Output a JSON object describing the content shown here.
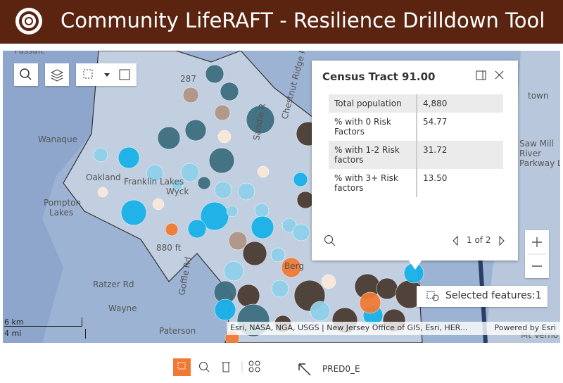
{
  "header": {
    "title": "Community LifeRAFT - Resilience Drilldown Tool"
  },
  "map": {
    "labels": [
      "Passaic",
      "Wanaque",
      "Oakland",
      "Franklin Lakes",
      "Wyck",
      "Pompton",
      "Lakes",
      "880 ft",
      "Ratzer Rd",
      "Goffle Rd",
      "Wayne",
      "Paterson",
      "Chestnut Ridge Rd",
      "Saddle R",
      "Berg",
      "287",
      "town",
      "Saw Mill",
      "River",
      "Parkway Lake",
      "Mt Verno"
    ],
    "scale": [
      "6 km",
      "4 mi"
    ],
    "attribution": "Esri, NASA, NGA, USGS | New Jersey Office of GIS, Esri, HER...",
    "powered_by": "Powered by Esri",
    "selected_features": "Selected features:1"
  },
  "popup": {
    "title": "Census Tract 91.00",
    "rows": [
      [
        "Total population",
        "4,880"
      ],
      [
        "% with 0 Risk Factors",
        "54.77"
      ],
      [
        "% with 1-2 Risk factors",
        "31.72"
      ],
      [
        "% with 3+ Risk factors",
        "13.50"
      ]
    ],
    "pager": "1 of 2"
  },
  "toolbar": {
    "field": "PRED0_E"
  }
}
